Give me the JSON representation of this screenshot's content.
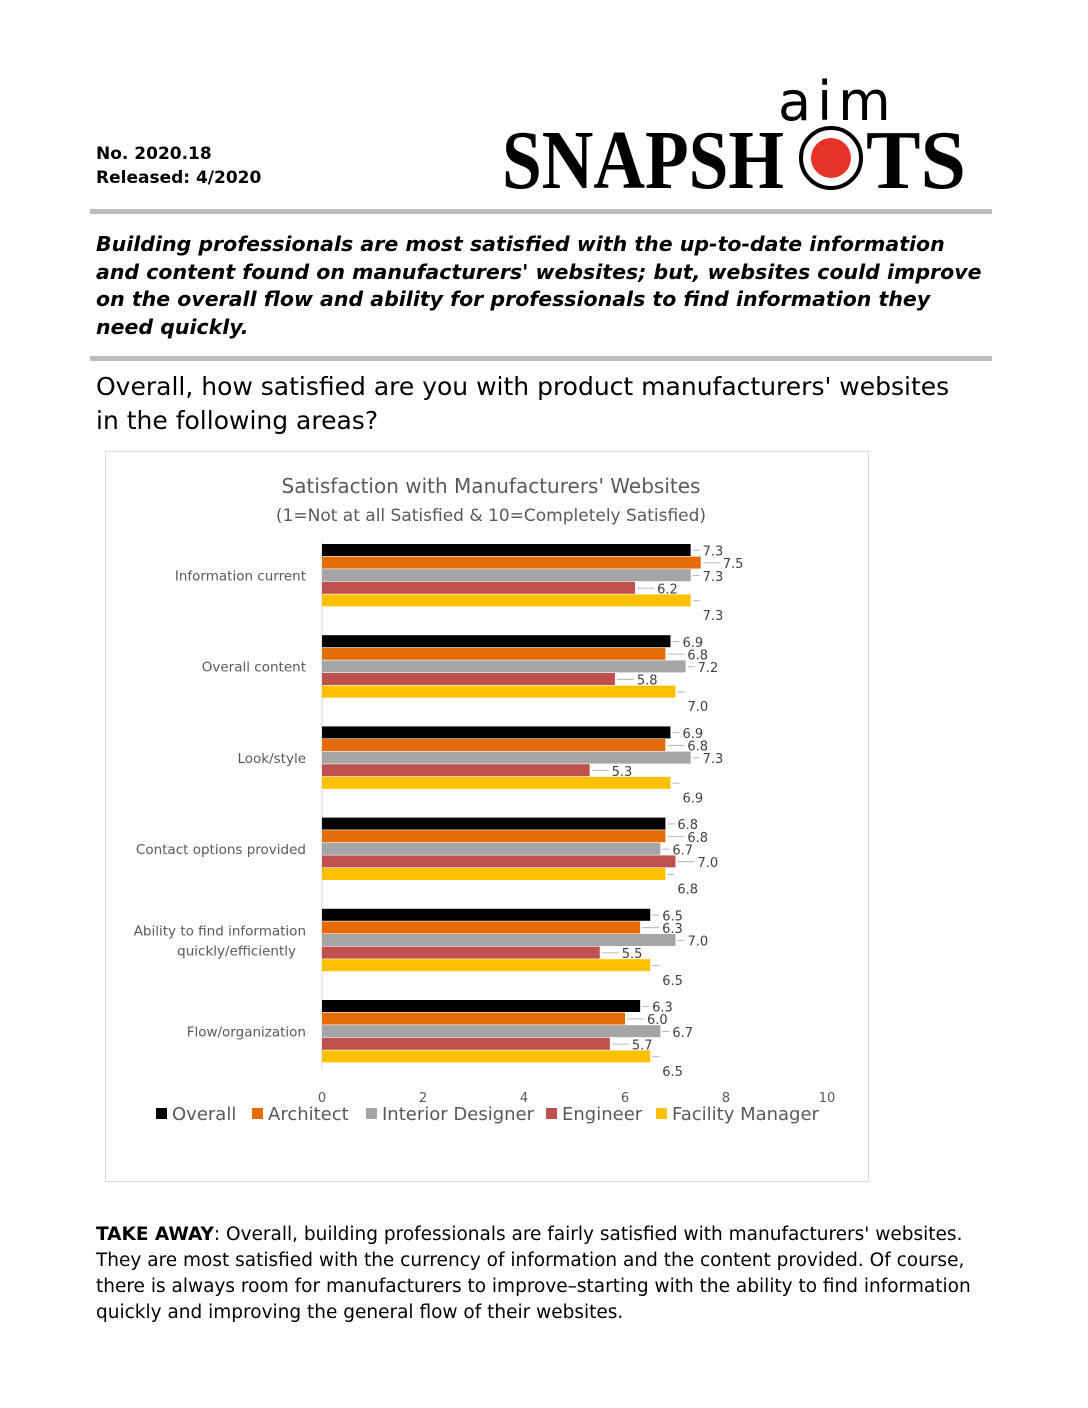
{
  "header": {
    "number": "No. 2020.18",
    "released": "Released: 4/2020",
    "logo_small": "aim",
    "logo_big_left": "SNAPSH",
    "logo_big_right": "TS"
  },
  "headline": "Building professionals are most satisfied with the up-to-date information and content found on manufacturers' websites; but, websites could improve on the overall flow and ability for professionals to find information they need quickly.",
  "question": "Overall, how satisfied are you with product manufacturers' websites in the following areas?",
  "chart_data": {
    "type": "bar",
    "orientation": "horizontal",
    "title": "Satisfaction with Manufacturers' Websites",
    "subtitle": "(1=Not at all Satisfied & 10=Completely Satisfied)",
    "categories": [
      "Information current",
      "Overall content",
      "Look/style",
      "Contact options provided",
      "Ability to find information quickly/efficiently",
      "Flow/organization"
    ],
    "xlim": [
      0,
      10
    ],
    "xticks": [
      0,
      2,
      4,
      6,
      8,
      10
    ],
    "grid": false,
    "legend_position": "bottom",
    "series": [
      {
        "name": "Overall",
        "color": "#000000",
        "values": [
          7.3,
          6.9,
          6.9,
          6.8,
          6.5,
          6.3
        ]
      },
      {
        "name": "Architect",
        "color": "#E36C09",
        "values": [
          7.5,
          6.8,
          6.8,
          6.8,
          6.3,
          6.0
        ]
      },
      {
        "name": "Interior Designer",
        "color": "#A5A5A5",
        "values": [
          7.3,
          7.2,
          7.3,
          6.7,
          7.0,
          6.7
        ]
      },
      {
        "name": "Engineer",
        "color": "#C0504D",
        "values": [
          6.2,
          5.8,
          5.3,
          7.0,
          5.5,
          5.7
        ]
      },
      {
        "name": "Facility Manager",
        "color": "#FFC000",
        "values": [
          7.3,
          7.0,
          6.9,
          6.8,
          6.5,
          6.5
        ]
      }
    ]
  },
  "takeaway": {
    "label": "TAKE AWAY",
    "text": ": Overall, building professionals are fairly satisfied with manufacturers' websites.  They are most satisfied with the currency of information and the content provided. Of course, there is always room for manufacturers to improve–starting with the ability to find information quickly and improving the general flow of their websites."
  },
  "colors": {
    "logo_red": "#E8332A",
    "rule_gray": "#BDBDBD"
  }
}
